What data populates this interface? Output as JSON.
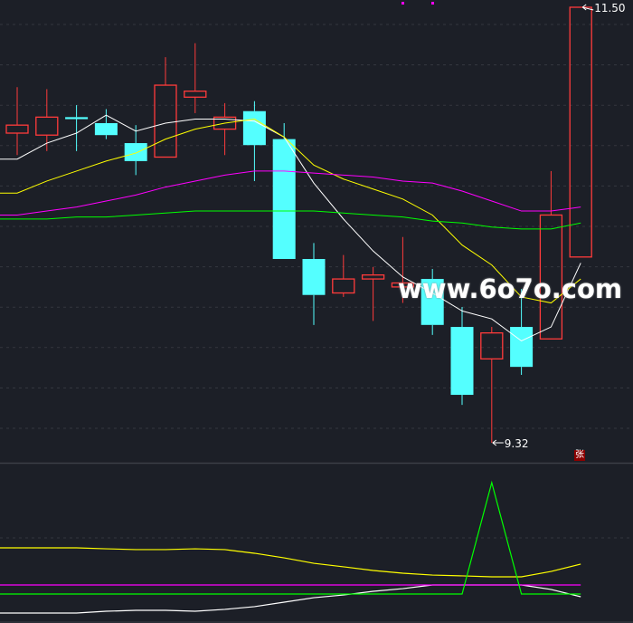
{
  "chart_data": [
    {
      "type": "candlestick",
      "title": "",
      "up_color": "#ff3b3b",
      "down_color": "#54ffff",
      "grid": true,
      "candles": [
        {
          "open": 10.87,
          "high": 11.1,
          "low": 10.76,
          "close": 10.91
        },
        {
          "open": 10.86,
          "high": 11.09,
          "low": 10.78,
          "close": 10.95
        },
        {
          "open": 10.95,
          "high": 11.01,
          "low": 10.78,
          "close": 10.94
        },
        {
          "open": 10.92,
          "high": 10.99,
          "low": 10.84,
          "close": 10.86
        },
        {
          "open": 10.82,
          "high": 10.91,
          "low": 10.66,
          "close": 10.73
        },
        {
          "open": 10.75,
          "high": 11.25,
          "low": 10.75,
          "close": 11.11
        },
        {
          "open": 11.05,
          "high": 11.32,
          "low": 10.97,
          "close": 11.08
        },
        {
          "open": 10.89,
          "high": 11.02,
          "low": 10.76,
          "close": 10.95
        },
        {
          "open": 10.98,
          "high": 11.03,
          "low": 10.63,
          "close": 10.81
        },
        {
          "open": 10.84,
          "high": 10.92,
          "low": 10.24,
          "close": 10.24
        },
        {
          "open": 10.24,
          "high": 10.32,
          "low": 9.91,
          "close": 10.06
        },
        {
          "open": 10.07,
          "high": 10.26,
          "low": 10.05,
          "close": 10.14
        },
        {
          "open": 10.14,
          "high": 10.2,
          "low": 9.93,
          "close": 10.16
        },
        {
          "open": 10.1,
          "high": 10.35,
          "low": 10.02,
          "close": 10.12
        },
        {
          "open": 10.14,
          "high": 10.19,
          "low": 9.86,
          "close": 9.91
        },
        {
          "open": 9.9,
          "high": 10.0,
          "low": 9.51,
          "close": 9.56
        },
        {
          "open": 9.74,
          "high": 9.9,
          "low": 9.32,
          "close": 9.87
        },
        {
          "open": 9.9,
          "high": 10.09,
          "low": 9.66,
          "close": 9.7
        },
        {
          "open": 9.84,
          "high": 10.68,
          "low": 9.84,
          "close": 10.46
        },
        {
          "open": 10.25,
          "high": 11.5,
          "low": 10.25,
          "close": 11.5
        }
      ],
      "moving_averages": [
        {
          "color": "#ffffff",
          "values": [
            10.74,
            10.82,
            10.87,
            10.96,
            10.88,
            10.92,
            10.94,
            10.94,
            10.93,
            10.85,
            10.62,
            10.44,
            10.28,
            10.15,
            10.07,
            9.98,
            9.94,
            9.83,
            9.9,
            10.22
          ]
        },
        {
          "color": "#ffff00",
          "values": [
            10.57,
            10.63,
            10.68,
            10.73,
            10.77,
            10.84,
            10.89,
            10.92,
            10.94,
            10.85,
            10.71,
            10.64,
            10.59,
            10.54,
            10.46,
            10.31,
            10.21,
            10.05,
            10.02,
            10.14
          ]
        },
        {
          "color": "#ff00ff",
          "values": [
            10.46,
            10.48,
            10.5,
            10.53,
            10.56,
            10.6,
            10.63,
            10.66,
            10.68,
            10.68,
            10.67,
            10.66,
            10.65,
            10.63,
            10.62,
            10.58,
            10.53,
            10.48,
            10.48,
            10.5
          ]
        },
        {
          "color": "#00ff00",
          "values": [
            10.44,
            10.44,
            10.45,
            10.45,
            10.46,
            10.47,
            10.48,
            10.48,
            10.48,
            10.48,
            10.48,
            10.47,
            10.46,
            10.45,
            10.43,
            10.42,
            10.4,
            10.39,
            10.39,
            10.42
          ]
        }
      ],
      "ylim": [
        9.32,
        11.5
      ],
      "annotations": {
        "max_label": "11.50",
        "min_label": "9.32"
      }
    },
    {
      "type": "line",
      "title": "",
      "grid": true,
      "ylim": [
        0,
        100
      ],
      "series": [
        {
          "color": "#ffff00",
          "values": [
            46.6,
            46.6,
            46.6,
            46.0,
            45.5,
            45.5,
            46.0,
            45.5,
            43.2,
            40.3,
            36.9,
            34.7,
            32.4,
            30.7,
            29.5,
            29.0,
            28.4,
            28.4,
            31.8,
            36.4
          ]
        },
        {
          "color": "#ffffff",
          "values": [
            5.7,
            5.7,
            5.7,
            6.8,
            7.4,
            7.4,
            6.8,
            8.0,
            9.7,
            12.5,
            15.3,
            17.0,
            19.3,
            21.0,
            23.3,
            23.3,
            23.3,
            23.3,
            20.5,
            15.9
          ]
        },
        {
          "color": "#ff00ff",
          "values": [
            23.3,
            23.3,
            23.3,
            23.3,
            23.3,
            23.3,
            23.3,
            23.3,
            23.3,
            23.3,
            23.3,
            23.3,
            23.3,
            23.3,
            23.3,
            23.3,
            23.3,
            23.3,
            23.3,
            23.3
          ]
        },
        {
          "color": "#00ff00",
          "values": [
            17.6,
            17.6,
            17.6,
            17.6,
            17.6,
            17.6,
            17.6,
            17.6,
            17.6,
            17.6,
            17.6,
            17.6,
            17.6,
            17.6,
            17.6,
            17.6,
            87.5,
            17.6,
            17.6,
            17.6
          ]
        }
      ]
    }
  ],
  "watermark": "www.6o7o.com",
  "seal": "张",
  "colors": {
    "background": "#1c1f27",
    "grid": "#34373f",
    "separator": "#3c3f47"
  }
}
